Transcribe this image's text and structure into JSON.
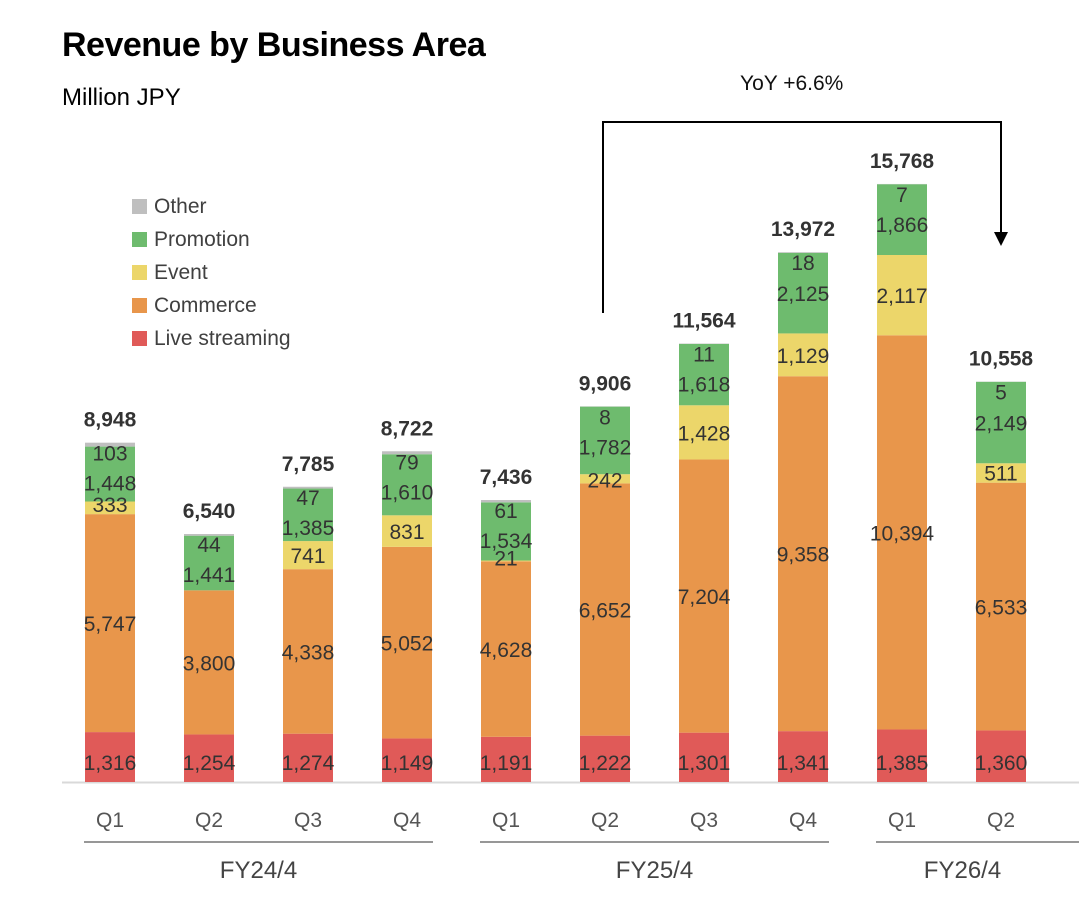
{
  "header": {
    "title": "Revenue by Business Area",
    "subtitle": "Million JPY"
  },
  "annotation": {
    "yoy_label": "YoY +6.6%",
    "from_category_index": 5,
    "to_category_index": 9
  },
  "legend": [
    {
      "name": "Other",
      "color": "#bfbfbf"
    },
    {
      "name": "Promotion",
      "color": "#6ebb6e"
    },
    {
      "name": "Event",
      "color": "#ecd66a"
    },
    {
      "name": "Commerce",
      "color": "#e8964b"
    },
    {
      "name": "Live streaming",
      "color": "#e05a58"
    }
  ],
  "chart_data": {
    "type": "bar",
    "stacked": true,
    "title": "Revenue by Business Area",
    "subtitle": "Million JPY",
    "xlabel": "",
    "ylabel": "",
    "ylim": [
      0,
      16000
    ],
    "grid": false,
    "legend_position": "top-left",
    "categories": [
      "Q1",
      "Q2",
      "Q3",
      "Q4",
      "Q1",
      "Q2",
      "Q3",
      "Q4",
      "Q1",
      "Q2"
    ],
    "groups": [
      {
        "label": "FY24/4",
        "start": 0,
        "end": 3
      },
      {
        "label": "FY25/4",
        "start": 4,
        "end": 7
      },
      {
        "label": "FY26/4",
        "start": 8,
        "end": 9
      }
    ],
    "series": [
      {
        "name": "Live streaming",
        "color": "#e05a58",
        "values": [
          1316,
          1254,
          1274,
          1149,
          1191,
          1222,
          1301,
          1341,
          1385,
          1360
        ],
        "labels": [
          "1,316",
          "1,254",
          "1,274",
          "1,149",
          "1,191",
          "1,222",
          "1,301",
          "1,341",
          "1,385",
          "1,360"
        ]
      },
      {
        "name": "Commerce",
        "color": "#e8964b",
        "values": [
          5747,
          3800,
          4338,
          5052,
          4628,
          6652,
          7204,
          9358,
          10394,
          6533
        ],
        "labels": [
          "5,747",
          "3,800",
          "4,338",
          "5,052",
          "4,628",
          "6,652",
          "7,204",
          "9,358",
          "10,394",
          "6,533"
        ]
      },
      {
        "name": "Event",
        "color": "#ecd66a",
        "values": [
          333,
          0,
          741,
          831,
          21,
          242,
          1428,
          1129,
          2117,
          511
        ],
        "labels": [
          "333",
          "",
          "741",
          "831",
          "21",
          "242",
          "1,428",
          "1,129",
          "2,117",
          "511"
        ]
      },
      {
        "name": "Promotion",
        "color": "#6ebb6e",
        "values": [
          1448,
          1441,
          1385,
          1610,
          1534,
          1782,
          1618,
          2125,
          1866,
          2149
        ],
        "labels": [
          "1,448",
          "1,441",
          "1,385",
          "1,610",
          "1,534",
          "1,782",
          "1,618",
          "2,125",
          "1,866",
          "2,149"
        ]
      },
      {
        "name": "Other",
        "color": "#bfbfbf",
        "values": [
          103,
          44,
          47,
          79,
          61,
          8,
          11,
          18,
          7,
          5
        ],
        "labels": [
          "103",
          "44",
          "47",
          "79",
          "61",
          "8",
          "11",
          "18",
          "7",
          "5"
        ]
      }
    ],
    "totals": [
      8948,
      6540,
      7785,
      8722,
      7436,
      9906,
      11564,
      13972,
      15768,
      10558
    ],
    "total_labels": [
      "8,948",
      "6,540",
      "7,785",
      "8,722",
      "7,436",
      "9,906",
      "11,564",
      "13,972",
      "15,768",
      "10,558"
    ]
  }
}
